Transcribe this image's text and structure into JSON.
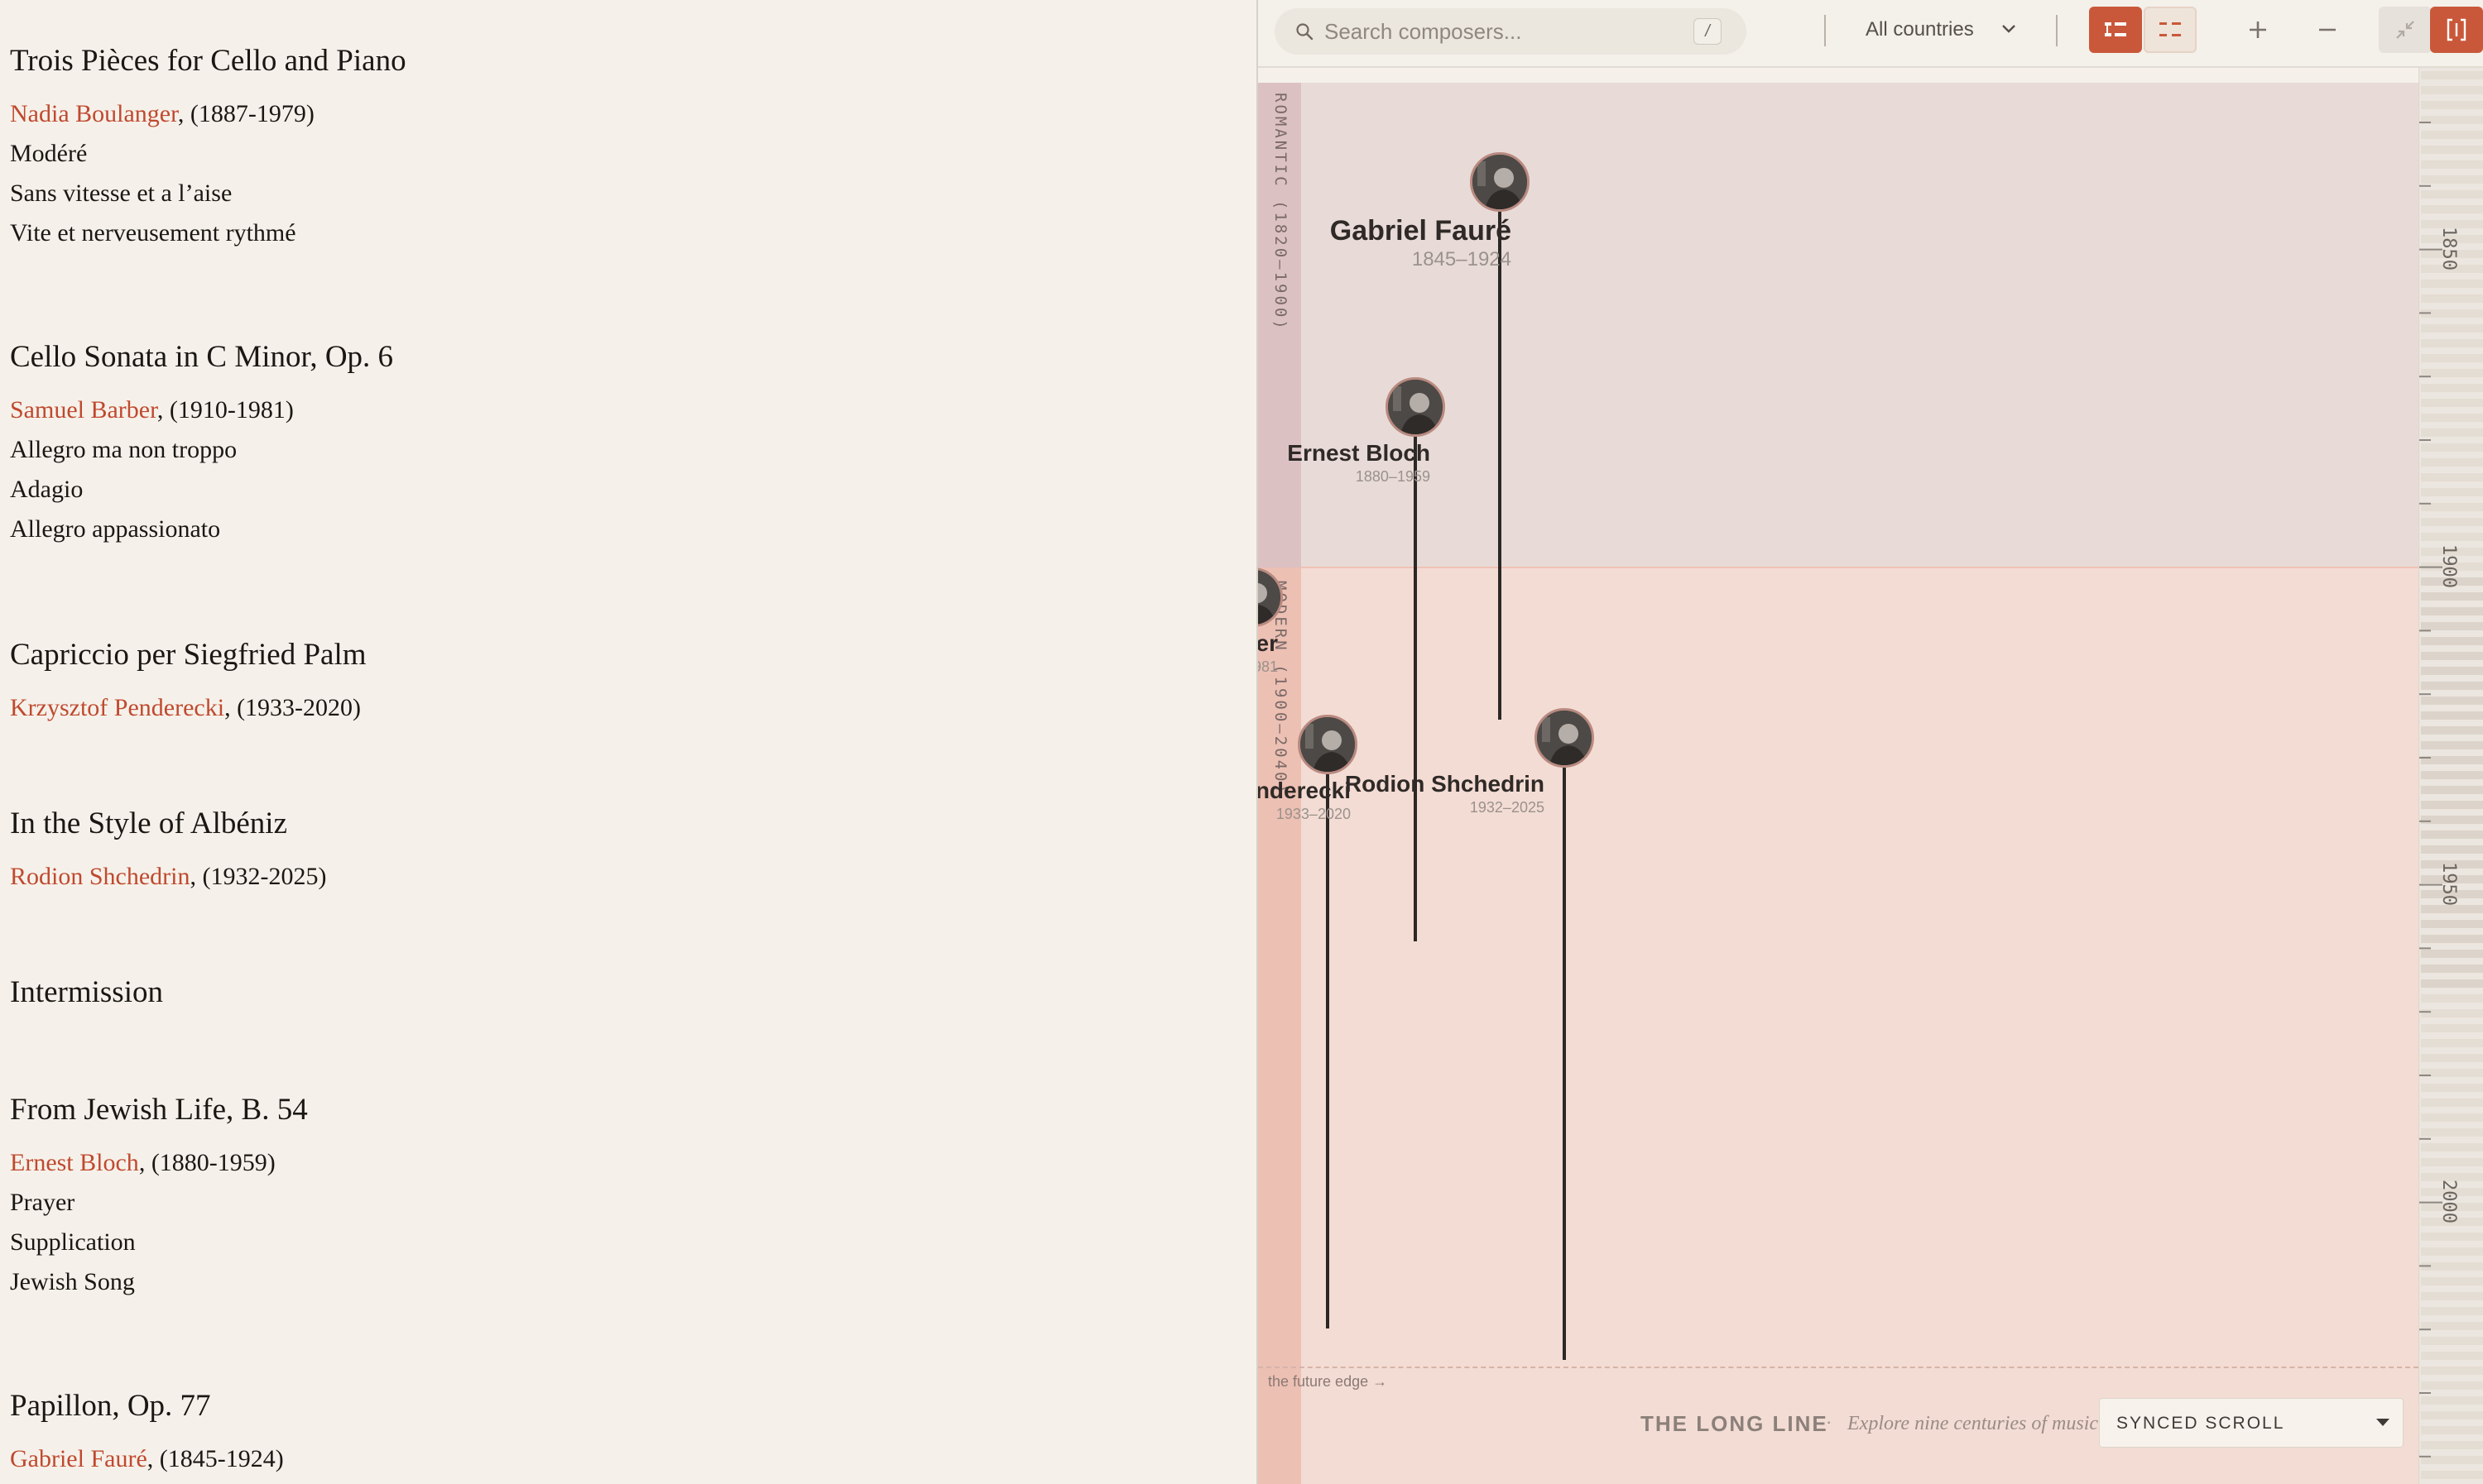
{
  "program": [
    {
      "title": "Trois Pièces for Cello and Piano",
      "composer": "Nadia Boulanger",
      "dates": ",  (1887-1979)",
      "movements": [
        "Modéré",
        "Sans vitesse et a l’aise",
        "Vite et nerveusement rythmé"
      ]
    },
    {
      "title": "Cello Sonata in C Minor, Op. 6",
      "composer": "Samuel Barber",
      "dates": ", (1910-1981)",
      "movements": [
        "Allegro ma non troppo",
        "Adagio",
        "Allegro appassionato"
      ]
    },
    {
      "title": "Capriccio per Siegfried Palm",
      "composer": "Krzysztof Penderecki",
      "dates": ", (1933-2020)",
      "movements": []
    },
    {
      "title": "In the Style of Albéniz",
      "composer": "Rodion Shchedrin",
      "dates": ", (1932-2025)",
      "movements": []
    },
    {
      "title": "Intermission"
    },
    {
      "title": "From Jewish Life, B. 54",
      "composer": "Ernest Bloch",
      "dates": ", (1880-1959)",
      "movements": [
        "Prayer",
        "Supplication",
        "Jewish Song"
      ]
    },
    {
      "title": "Papillon, Op. 77",
      "composer": "Gabriel Fauré",
      "dates": ", (1845-1924)",
      "movements": []
    }
  ],
  "toolbar": {
    "search_placeholder": "Search composers...",
    "shortcut_key": "/",
    "country_filter": "All countries",
    "icons": [
      "search-icon",
      "chevron-down-icon",
      "list-view-icon",
      "split-view-icon",
      "plus-icon",
      "minus-icon",
      "collapse-icon",
      "expand-icon"
    ]
  },
  "eras": {
    "romantic": "ROMANTIC (1820–1900)",
    "modern": "MODERN (1900–2040)"
  },
  "ruler_years": [
    "1850",
    "1900",
    "1950",
    "2000"
  ],
  "composers": [
    {
      "name": "Gabriel Fauré",
      "dates": "1845–1924",
      "birth": 1845,
      "death": 1924
    },
    {
      "name": "Ernest Bloch",
      "dates": "1880–1959",
      "birth": 1880,
      "death": 1959
    },
    {
      "name": "Nadia Boulanger",
      "dates": "1887–1979",
      "birth": 1887,
      "death": 1979
    },
    {
      "name": "Samuel Barber",
      "dates": "1910–1981",
      "birth": 1910,
      "death": 1981
    },
    {
      "name": "Krzysztof Penderecki",
      "dates": "1933–2020",
      "birth": 1933,
      "death": 2020
    },
    {
      "name": "Rodion Shchedrin",
      "dates": "1932–2025",
      "birth": 1932,
      "death": 2025
    }
  ],
  "future_edge_label": "the future edge →",
  "footer": {
    "title": "THE LONG LINE",
    "separator": "·",
    "tagline": "Explore nine centuries of music",
    "sync_mode": "SYNCED SCROLL"
  },
  "colors": {
    "accent": "#c9583a",
    "link": "#c0492e",
    "romantic_bg": "#e8dbd7",
    "modern_bg": "#f3dcd4"
  }
}
